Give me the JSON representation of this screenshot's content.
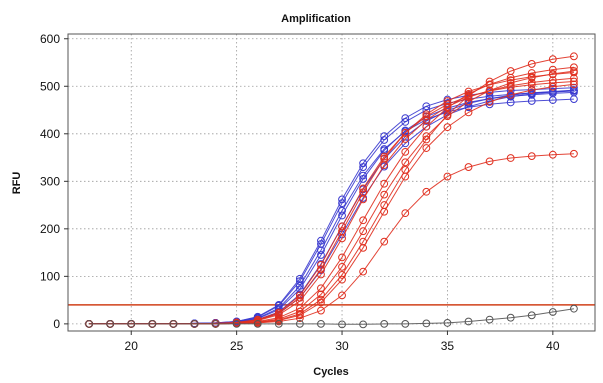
{
  "chart_data": {
    "type": "line",
    "title": "Amplification",
    "xlabel": "Cycles",
    "ylabel": "RFU",
    "xlim": [
      17,
      42
    ],
    "ylim": [
      -15,
      610
    ],
    "xticks": [
      20,
      25,
      30,
      35,
      40
    ],
    "yticks": [
      0,
      100,
      200,
      300,
      400,
      500,
      600
    ],
    "grid": true,
    "legend": "none",
    "threshold": {
      "value": 40,
      "color": "#d0401a"
    },
    "x": [
      18,
      19,
      20,
      21,
      22,
      23,
      24,
      25,
      26,
      27,
      28,
      29,
      30,
      31,
      32,
      33,
      34,
      35,
      36,
      37,
      38,
      39,
      40,
      41
    ],
    "series": [
      {
        "color": "#3a3acf",
        "values": [
          0,
          0,
          0,
          0,
          0,
          1,
          2,
          5,
          15,
          40,
          95,
          175,
          262,
          338,
          395,
          433,
          458,
          472,
          481,
          487,
          491,
          493,
          495,
          497
        ]
      },
      {
        "color": "#3a3acf",
        "values": [
          0,
          0,
          0,
          0,
          0,
          1,
          2,
          5,
          14,
          38,
          90,
          168,
          254,
          330,
          387,
          425,
          450,
          464,
          473,
          479,
          483,
          486,
          488,
          490
        ]
      },
      {
        "color": "#3a3acf",
        "values": [
          0,
          0,
          0,
          0,
          0,
          1,
          2,
          4,
          12,
          33,
          80,
          155,
          238,
          312,
          368,
          405,
          430,
          446,
          456,
          462,
          466,
          469,
          471,
          473
        ]
      },
      {
        "color": "#3a3acf",
        "values": [
          0,
          0,
          0,
          0,
          0,
          1,
          2,
          4,
          11,
          30,
          73,
          145,
          228,
          305,
          365,
          407,
          436,
          454,
          466,
          474,
          479,
          482,
          485,
          487
        ]
      },
      {
        "color": "#3a3acf",
        "values": [
          0,
          0,
          0,
          0,
          0,
          0,
          1,
          3,
          9,
          25,
          62,
          126,
          205,
          283,
          347,
          394,
          427,
          449,
          464,
          474,
          481,
          486,
          489,
          492
        ]
      },
      {
        "color": "#3a3acf",
        "values": [
          0,
          0,
          0,
          0,
          0,
          0,
          1,
          3,
          8,
          22,
          55,
          113,
          188,
          265,
          331,
          380,
          415,
          440,
          457,
          469,
          478,
          484,
          488,
          491
        ]
      },
      {
        "color": "#e03020",
        "values": [
          0,
          0,
          0,
          0,
          0,
          0,
          1,
          3,
          9,
          24,
          60,
          124,
          205,
          285,
          352,
          402,
          437,
          462,
          479,
          490,
          498,
          503,
          507,
          510
        ]
      },
      {
        "color": "#e03020",
        "values": [
          0,
          0,
          0,
          0,
          0,
          0,
          1,
          2,
          8,
          22,
          55,
          115,
          195,
          277,
          348,
          402,
          441,
          469,
          489,
          503,
          513,
          520,
          525,
          529
        ]
      },
      {
        "color": "#e03020",
        "values": [
          0,
          0,
          0,
          0,
          0,
          0,
          1,
          2,
          7,
          19,
          48,
          104,
          180,
          262,
          334,
          389,
          429,
          457,
          477,
          491,
          501,
          508,
          513,
          517
        ]
      },
      {
        "color": "#e03020",
        "values": [
          0,
          0,
          0,
          0,
          0,
          0,
          1,
          2,
          5,
          13,
          33,
          75,
          140,
          218,
          295,
          362,
          415,
          455,
          484,
          504,
          518,
          528,
          535,
          540
        ]
      },
      {
        "color": "#e03020",
        "values": [
          0,
          0,
          0,
          0,
          0,
          0,
          0,
          1,
          4,
          10,
          26,
          62,
          120,
          195,
          272,
          340,
          395,
          437,
          468,
          491,
          507,
          518,
          526,
          532
        ]
      },
      {
        "color": "#e03020",
        "values": [
          0,
          0,
          0,
          0,
          0,
          0,
          0,
          1,
          3,
          8,
          21,
          51,
          103,
          173,
          250,
          324,
          388,
          440,
          480,
          510,
          532,
          547,
          557,
          563
        ]
      },
      {
        "color": "#e03020",
        "values": [
          0,
          0,
          0,
          0,
          0,
          0,
          0,
          1,
          3,
          7,
          18,
          45,
          93,
          160,
          236,
          310,
          370,
          414,
          445,
          467,
          482,
          492,
          499,
          504
        ]
      },
      {
        "color": "#e03020",
        "values": [
          0,
          0,
          0,
          0,
          0,
          0,
          0,
          1,
          2,
          5,
          12,
          28,
          60,
          110,
          173,
          233,
          278,
          310,
          330,
          342,
          349,
          353,
          356,
          358
        ]
      },
      {
        "color": "#555555",
        "values": [
          0,
          0,
          0,
          0,
          0,
          0,
          0,
          0,
          0,
          0,
          0,
          0,
          -1,
          -1,
          0,
          0,
          1,
          2,
          5,
          9,
          13,
          18,
          25,
          32
        ]
      }
    ]
  }
}
